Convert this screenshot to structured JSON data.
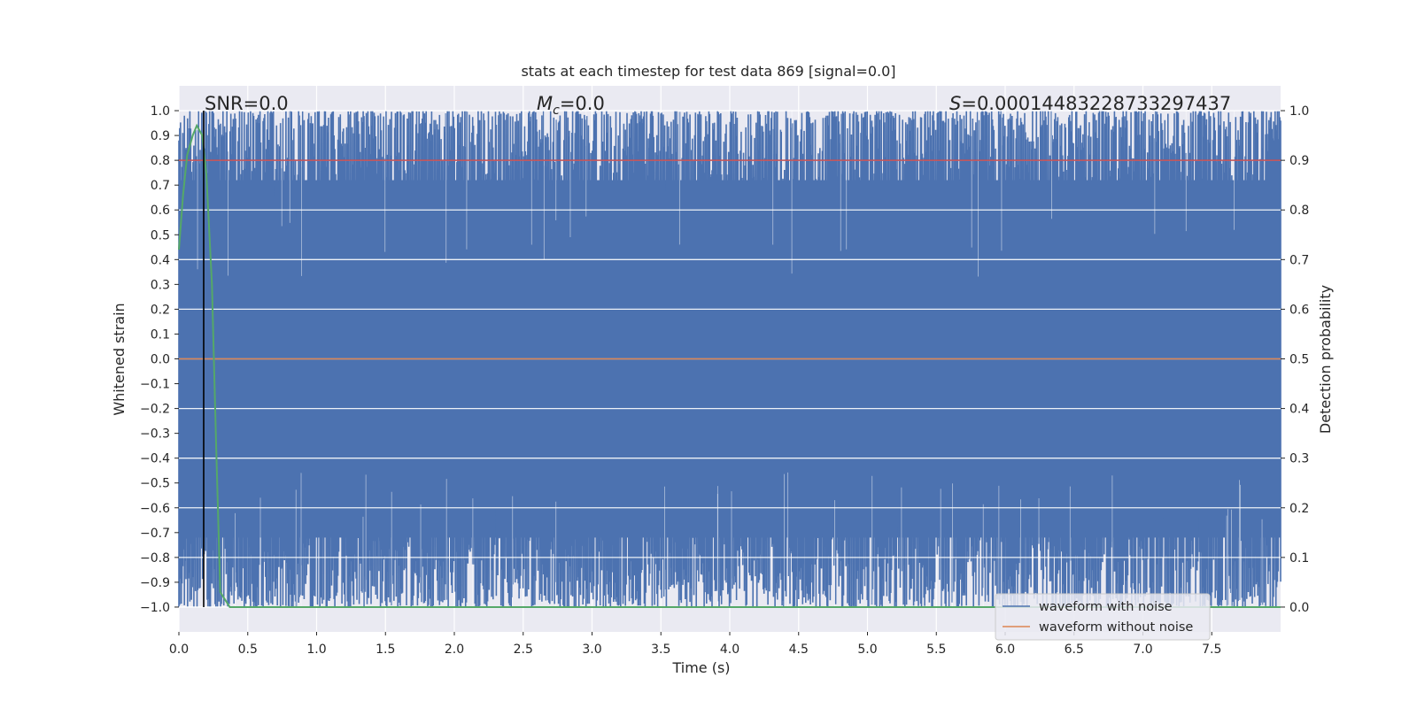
{
  "chart_data": {
    "type": "line",
    "title": "stats at each timestep for test data 869 [signal=0.0]",
    "xlabel": "Time (s)",
    "ylabel": "Whitened strain",
    "ylabel_right": "Detection probability",
    "xlim": [
      0.0,
      8.0
    ],
    "ylim": [
      -1.1,
      1.1
    ],
    "ylim_right": [
      -0.05,
      1.05
    ],
    "x_ticks": [
      "0.0",
      "0.5",
      "1.0",
      "1.5",
      "2.0",
      "2.5",
      "3.0",
      "3.5",
      "4.0",
      "4.5",
      "5.0",
      "5.5",
      "6.0",
      "6.5",
      "7.0",
      "7.5"
    ],
    "y_ticks": [
      "1.0",
      "0.9",
      "0.8",
      "0.7",
      "0.6",
      "0.5",
      "0.4",
      "0.3",
      "0.2",
      "0.1",
      "0.0",
      "−0.1",
      "−0.2",
      "−0.3",
      "−0.4",
      "−0.5",
      "−0.6",
      "−0.7",
      "−0.8",
      "−0.9",
      "−1.0"
    ],
    "y_right_ticks": [
      "1.0",
      "0.9",
      "0.8",
      "0.7",
      "0.6",
      "0.5",
      "0.4",
      "0.3",
      "0.2",
      "0.1",
      "0.0"
    ],
    "grid": true,
    "annotations": {
      "snr": "SNR=0.0",
      "mc_symbol": "M",
      "mc_sub": "c",
      "mc_value": "=0.0",
      "s_symbol": "S",
      "s_value": "=0.00014483228733297437"
    },
    "series": [
      {
        "name": "waveform with noise",
        "color": "#4c72b0",
        "description_values": "noise oscillating between approx -1.0 and 1.0 over 0-8 s",
        "envelope_top": 1.0,
        "envelope_bottom": -1.0
      },
      {
        "name": "waveform without noise",
        "color": "#dd8452",
        "x": [
          0.0,
          8.0
        ],
        "y": [
          0.0,
          0.0
        ]
      },
      {
        "color": "#55a868",
        "axis": "right",
        "x": [
          0.0,
          0.03,
          0.06,
          0.1,
          0.13,
          0.17,
          0.2,
          0.24,
          0.27,
          0.3,
          0.37,
          0.4,
          8.0
        ],
        "y": [
          0.72,
          0.83,
          0.91,
          0.95,
          0.97,
          0.95,
          0.87,
          0.65,
          0.33,
          0.03,
          0.0,
          0.0,
          0.0
        ]
      }
    ],
    "hlines": [
      {
        "axis": "right",
        "y": 0.9,
        "color": "#c44e52"
      }
    ],
    "vlines": [
      {
        "x": 0.18,
        "color": "#000000"
      }
    ],
    "legend": {
      "placement": "lower-right",
      "entries": [
        {
          "label": "waveform with noise",
          "color": "#4c72b0"
        },
        {
          "label": "waveform without noise",
          "color": "#dd8452"
        }
      ]
    },
    "colors": {
      "axes_bg": "#eaeaf2",
      "grid": "#ffffff",
      "threshold": "#c44e52",
      "probability": "#55a868"
    }
  }
}
